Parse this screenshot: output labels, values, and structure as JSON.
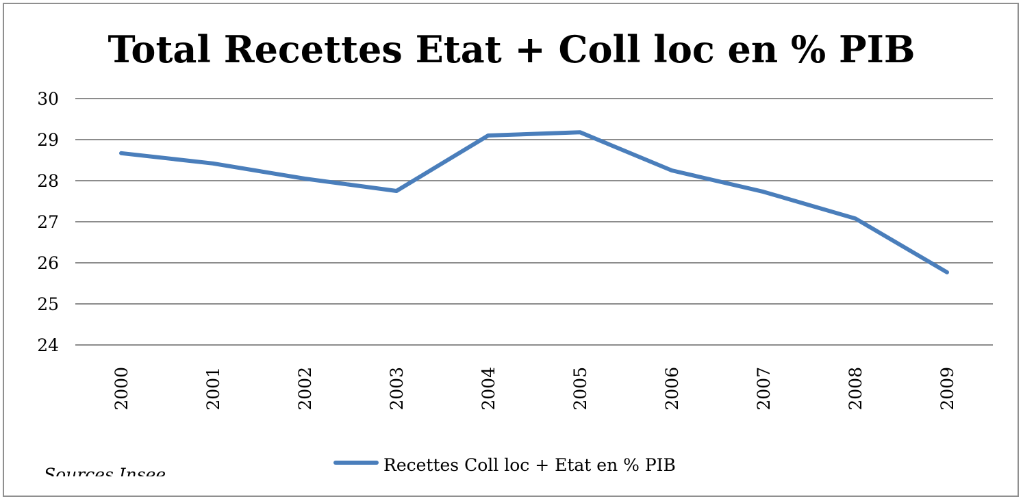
{
  "chart_data": {
    "type": "line",
    "title": "Total Recettes Etat + Coll loc en % PIB",
    "xlabel": "",
    "ylabel": "",
    "ylim": [
      24,
      30
    ],
    "yticks": [
      "24",
      "25",
      "26",
      "27",
      "28",
      "29",
      "30"
    ],
    "categories": [
      "2000",
      "2001",
      "2002",
      "2003",
      "2004",
      "2005",
      "2006",
      "2007",
      "2008",
      "2009"
    ],
    "series": [
      {
        "name": "Recettes Coll loc + Etat en % PIB",
        "color": "#4a7ebb",
        "values": [
          28.67,
          28.42,
          28.05,
          27.75,
          29.1,
          29.18,
          28.25,
          27.73,
          27.08,
          25.77
        ]
      }
    ],
    "grid": true,
    "legend_position": "bottom"
  },
  "source_note": "Sources Insee",
  "colors": {
    "gridline": "#8c8c8c",
    "border": "#8f8f8f"
  }
}
